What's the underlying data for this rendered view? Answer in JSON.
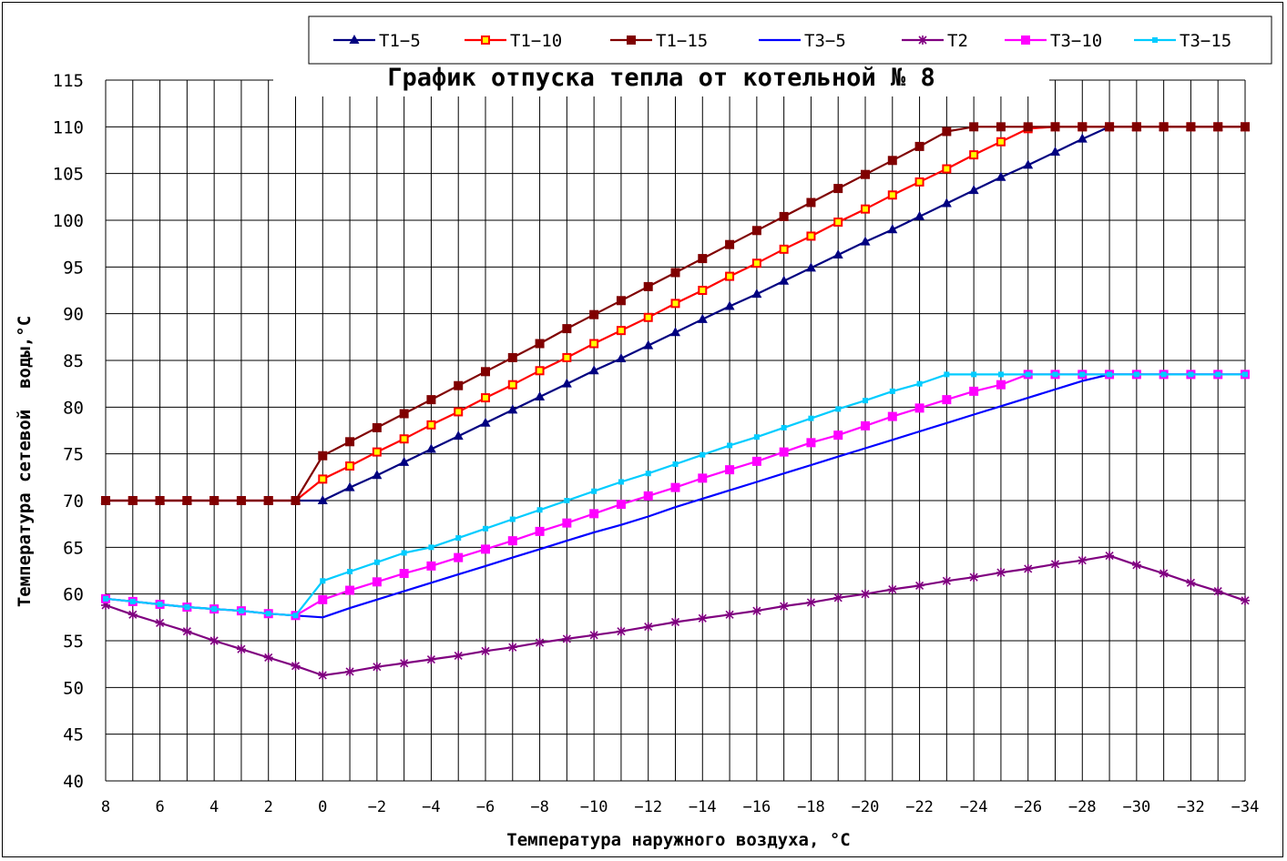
{
  "chart_data": {
    "type": "line",
    "title": "График отпуска тепла от котельной № 8",
    "xlabel": "Температура наружного воздуха, °С",
    "ylabel": "Температура сетевой  воды,°С",
    "x": [
      8,
      7,
      6,
      5,
      4,
      3,
      2,
      1,
      0,
      -1,
      -2,
      -3,
      -4,
      -5,
      -6,
      -7,
      -8,
      -9,
      -10,
      -11,
      -12,
      -13,
      -14,
      -15,
      -16,
      -17,
      -18,
      -19,
      -20,
      -21,
      -22,
      -23,
      -24,
      -25,
      -26,
      -27,
      -28,
      -29,
      -30,
      -31,
      -32,
      -33,
      -34
    ],
    "x_tick_labels": [
      "8",
      "6",
      "4",
      "2",
      "0",
      "-2",
      "-4",
      "-6",
      "-8",
      "-10",
      "-12",
      "-14",
      "-16",
      "-18",
      "-20",
      "-22",
      "-24",
      "-26",
      "-28",
      "-30",
      "-32",
      "-34"
    ],
    "y_tick_labels": [
      "40",
      "45",
      "50",
      "55",
      "60",
      "65",
      "70",
      "75",
      "80",
      "85",
      "90",
      "95",
      "100",
      "105",
      "110",
      "115"
    ],
    "xlim": [
      8,
      -34
    ],
    "ylim": [
      40,
      115
    ],
    "grid": true,
    "legend_position": "top",
    "series": [
      {
        "name": "Т1−5",
        "color": "#000080",
        "marker": "triangle",
        "values": [
          70,
          70,
          70,
          70,
          70,
          70,
          70,
          70,
          70,
          71.4,
          72.7,
          74.1,
          75.5,
          76.9,
          78.3,
          79.7,
          81.1,
          82.5,
          83.9,
          85.2,
          86.6,
          88.0,
          89.4,
          90.8,
          92.1,
          93.5,
          94.9,
          96.3,
          97.7,
          99.0,
          100.4,
          101.8,
          103.2,
          104.6,
          105.9,
          107.3,
          108.7,
          110,
          110,
          110,
          110,
          110,
          110
        ]
      },
      {
        "name": "Т1−10",
        "color": "#ff0000",
        "marker": "square-open",
        "values": [
          70,
          70,
          70,
          70,
          70,
          70,
          70,
          70,
          72.3,
          73.7,
          75.2,
          76.6,
          78.1,
          79.5,
          81.0,
          82.4,
          83.9,
          85.3,
          86.8,
          88.2,
          89.6,
          91.1,
          92.5,
          94.0,
          95.4,
          96.9,
          98.3,
          99.8,
          101.2,
          102.7,
          104.1,
          105.5,
          107.0,
          108.4,
          109.8,
          110,
          110,
          110,
          110,
          110,
          110,
          110,
          110
        ]
      },
      {
        "name": "Т1−15",
        "color": "#800000",
        "marker": "square",
        "values": [
          70,
          70,
          70,
          70,
          70,
          70,
          70,
          70,
          74.8,
          76.3,
          77.8,
          79.3,
          80.8,
          82.3,
          83.8,
          85.3,
          86.8,
          88.4,
          89.9,
          91.4,
          92.9,
          94.4,
          95.9,
          97.4,
          98.9,
          100.4,
          101.9,
          103.4,
          104.9,
          106.4,
          107.9,
          109.5,
          110,
          110,
          110,
          110,
          110,
          110,
          110,
          110,
          110,
          110,
          110
        ]
      },
      {
        "name": "Т3−5",
        "color": "#0000ff",
        "marker": "none",
        "values": [
          59.5,
          59.2,
          58.9,
          58.6,
          58.4,
          58.2,
          57.9,
          57.7,
          57.5,
          58.5,
          59.4,
          60.3,
          61.2,
          62.1,
          63.0,
          63.9,
          64.8,
          65.7,
          66.6,
          67.4,
          68.3,
          69.3,
          70.2,
          71.1,
          72.0,
          72.9,
          73.8,
          74.7,
          75.6,
          76.5,
          77.4,
          78.3,
          79.2,
          80.1,
          81.0,
          81.9,
          82.8,
          83.5,
          83.5,
          83.5,
          83.5,
          83.5,
          83.5
        ]
      },
      {
        "name": "Т2",
        "color": "#800080",
        "marker": "star",
        "values": [
          58.8,
          57.8,
          56.9,
          56.0,
          55.0,
          54.1,
          53.2,
          52.3,
          51.3,
          51.7,
          52.2,
          52.6,
          53.0,
          53.4,
          53.9,
          54.3,
          54.8,
          55.2,
          55.6,
          56.0,
          56.5,
          57.0,
          57.4,
          57.8,
          58.2,
          58.7,
          59.1,
          59.6,
          60.0,
          60.5,
          60.9,
          61.4,
          61.8,
          62.3,
          62.7,
          63.2,
          63.6,
          64.1,
          63.1,
          62.2,
          61.2,
          60.3,
          59.3
        ]
      },
      {
        "name": "Т3−10",
        "color": "#ff00ff",
        "marker": "square",
        "values": [
          59.5,
          59.2,
          58.9,
          58.6,
          58.4,
          58.2,
          57.9,
          57.7,
          59.4,
          60.4,
          61.3,
          62.2,
          63.0,
          63.9,
          64.8,
          65.7,
          66.7,
          67.6,
          68.6,
          69.6,
          70.5,
          71.4,
          72.4,
          73.3,
          74.2,
          75.2,
          76.2,
          77.0,
          78.0,
          79.0,
          79.9,
          80.8,
          81.7,
          82.4,
          83.5,
          83.5,
          83.5,
          83.5,
          83.5,
          83.5,
          83.5,
          83.5,
          83.5
        ]
      },
      {
        "name": "Т3−15",
        "color": "#00ccff",
        "marker": "small-square",
        "values": [
          59.5,
          59.2,
          58.9,
          58.6,
          58.4,
          58.2,
          57.9,
          57.7,
          61.4,
          62.4,
          63.4,
          64.4,
          65.0,
          66.0,
          67.0,
          68.0,
          69.0,
          70.0,
          71.0,
          72.0,
          72.9,
          73.9,
          74.9,
          75.9,
          76.8,
          77.8,
          78.8,
          79.8,
          80.7,
          81.7,
          82.5,
          83.5,
          83.5,
          83.5,
          83.5,
          83.5,
          83.5,
          83.5,
          83.5,
          83.5,
          83.5,
          83.5,
          83.5
        ]
      }
    ]
  }
}
